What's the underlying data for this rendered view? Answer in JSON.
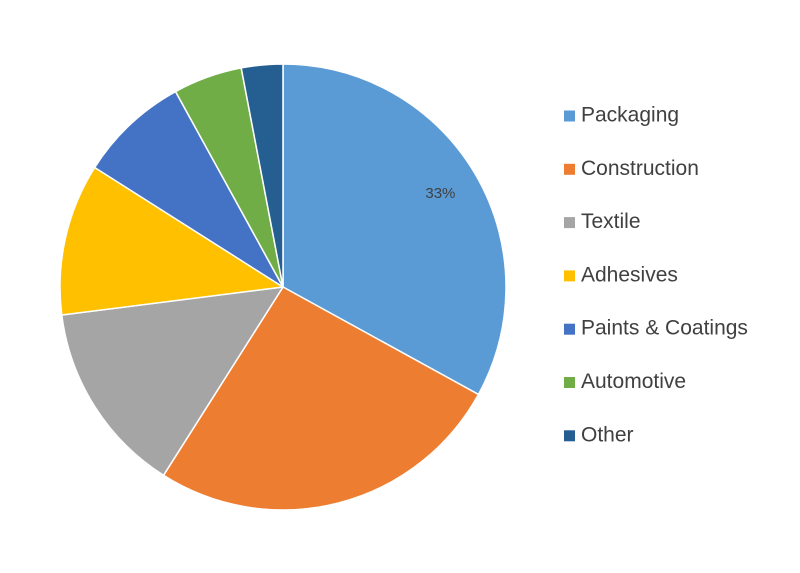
{
  "chart_data": {
    "type": "pie",
    "categories": [
      "Packaging",
      "Construction",
      "Textile",
      "Adhesives",
      "Paints & Coatings",
      "Automotive",
      "Other"
    ],
    "values": [
      33,
      26,
      14,
      11,
      8,
      5,
      3
    ],
    "colors": [
      "#5B9BD5",
      "#ED7D31",
      "#A5A5A5",
      "#FFC000",
      "#4472C4",
      "#70AD47",
      "#255E91"
    ],
    "data_labels": [
      "33%",
      "",
      "",
      "",
      "",
      "",
      ""
    ],
    "start_angle_deg": 0,
    "direction": "clockwise",
    "legend": "right",
    "title": ""
  }
}
